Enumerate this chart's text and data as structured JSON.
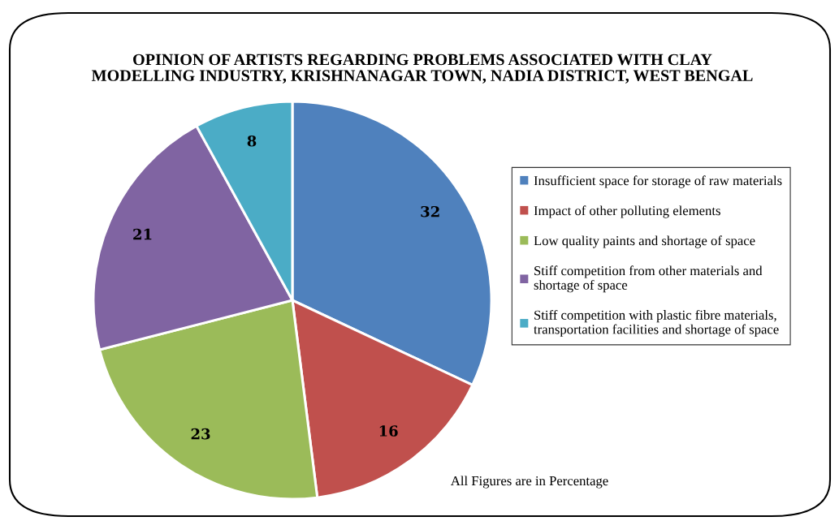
{
  "chart_data": {
    "type": "pie",
    "title": "OPINION OF ARTISTS REGARDING PROBLEMS ASSOCIATED WITH CLAY\nMODELLING INDUSTRY, KRISHNANAGAR TOWN, NADIA DISTRICT, WEST BENGAL",
    "categories": [
      "Insufficient space for storage of raw materials",
      "Impact of other polluting elements",
      "Low quality paints and shortage of space",
      "Stiff competition from other materials and\nshortage of space",
      "Stiff competition with plastic fibre materials,\ntransportation facilities and shortage of space"
    ],
    "values": [
      32,
      16,
      23,
      21,
      8
    ],
    "colors": [
      "#4f81bd",
      "#c0504d",
      "#9bbb59",
      "#8064a2",
      "#4bacc6"
    ],
    "data_labels": true,
    "legend": "right",
    "annotations": [
      "All Figures are in Percentage"
    ]
  }
}
